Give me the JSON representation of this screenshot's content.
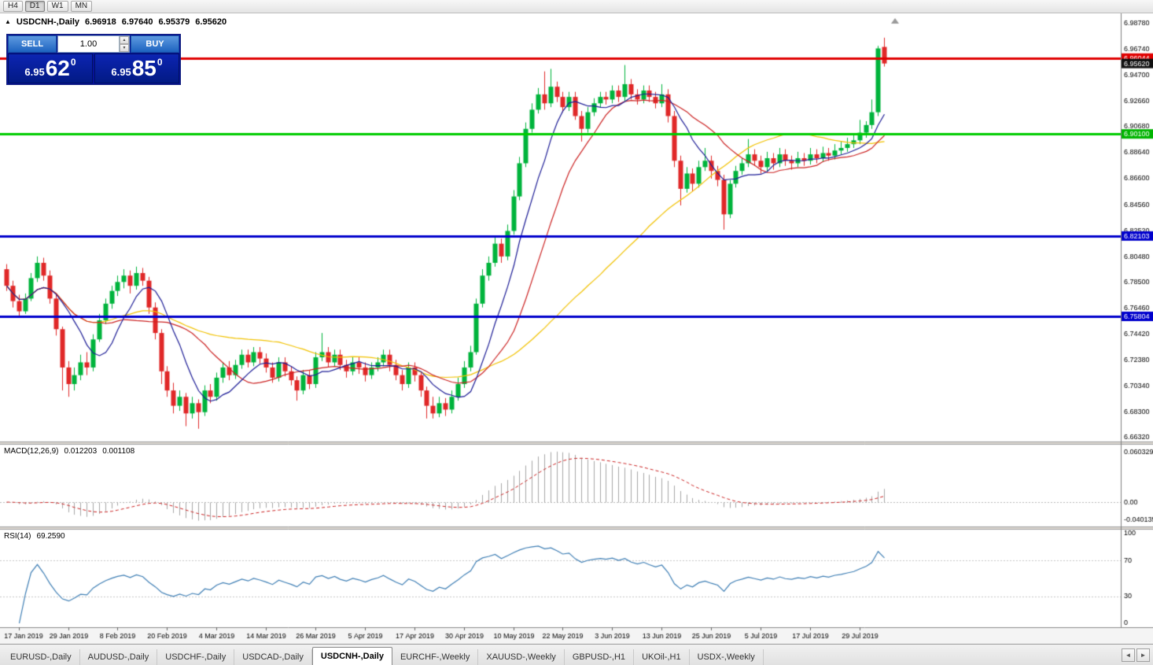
{
  "toolbar": {
    "timeframes": [
      "H4",
      "D1",
      "W1",
      "MN"
    ],
    "active_timeframe": "D1"
  },
  "chart_header": {
    "collapse_icon": "▲",
    "symbol_title": "USDCNH-,Daily",
    "open": "6.96918",
    "high": "6.97640",
    "low": "6.95379",
    "close": "6.95620"
  },
  "trade_panel": {
    "sell_label": "SELL",
    "buy_label": "BUY",
    "volume": "1.00",
    "spinner_up": "▲",
    "spinner_down": "▼",
    "sell_price": {
      "small": "6.95",
      "big": "62",
      "sup": "0"
    },
    "buy_price": {
      "small": "6.95",
      "big": "85",
      "sup": "0"
    }
  },
  "indicators": {
    "macd": {
      "name": "MACD(12,26,9)",
      "value_main": "0.012203",
      "value_signal": "0.001108",
      "fast": 12,
      "slow": 26,
      "signal": 9,
      "axis_labels": [
        "0.060329",
        "0.00",
        "-0.040135"
      ],
      "bar_color": "#a6a6a6",
      "signal_color": "#cc2222"
    },
    "rsi": {
      "name": "RSI(14)",
      "value": "69.2590",
      "period": 14,
      "axis_labels": [
        "100",
        "70",
        "30",
        "0"
      ],
      "axis_values": [
        100,
        70,
        30,
        0
      ],
      "levels": [
        70,
        30
      ],
      "line_color": "#3f7fb5"
    }
  },
  "price_axis": {
    "labels": [
      "6.98780",
      "6.96740",
      "6.94700",
      "6.92660",
      "6.90680",
      "6.88640",
      "6.86600",
      "6.84560",
      "6.82520",
      "6.80480",
      "6.78500",
      "6.76460",
      "6.74420",
      "6.72380",
      "6.70340",
      "6.68300",
      "6.66320"
    ],
    "tags": [
      {
        "text": "6.96044",
        "price": 6.96044,
        "color": "#e00000"
      },
      {
        "text": "6.95620",
        "price": 6.9562,
        "color": "#101010"
      },
      {
        "text": "6.90100",
        "price": 6.901,
        "color": "#00b400"
      },
      {
        "text": "6.82103",
        "price": 6.82103,
        "color": "#0000cc"
      },
      {
        "text": "6.75804",
        "price": 6.75804,
        "color": "#0000cc"
      }
    ]
  },
  "hlines": [
    {
      "price": 6.96044,
      "color": "#e00000",
      "width": 3
    },
    {
      "price": 6.901,
      "color": "#00cc00",
      "width": 3
    },
    {
      "price": 6.82103,
      "color": "#0000cc",
      "width": 3
    },
    {
      "price": 6.75804,
      "color": "#0000cc",
      "width": 3
    }
  ],
  "chart_data": {
    "type": "candlestick",
    "symbol": "USDCNH",
    "timeframe": "Daily",
    "up_color": "#00b43c",
    "down_color": "#e02828",
    "ylim": [
      6.66,
      6.993
    ],
    "moving_averages": [
      {
        "period": 45,
        "color": "#f2c200"
      },
      {
        "period": 16,
        "color": "#cc2222"
      },
      {
        "period": 8,
        "color": "#1c1c96"
      }
    ],
    "x_label_indices": [
      2,
      10,
      18,
      26,
      34,
      42,
      50,
      58,
      66,
      74,
      82,
      90,
      98,
      106,
      114,
      122,
      130,
      138
    ],
    "x_labels": [
      "17 Jan 2019",
      "29 Jan 2019",
      "8 Feb 2019",
      "20 Feb 2019",
      "4 Mar 2019",
      "14 Mar 2019",
      "26 Mar 2019",
      "5 Apr 2019",
      "17 Apr 2019",
      "30 Apr 2019",
      "10 May 2019",
      "22 May 2019",
      "3 Jun 2019",
      "13 Jun 2019",
      "25 Jun 2019",
      "5 Jul 2019",
      "17 Jul 2019",
      "29 Jul 2019"
    ],
    "ohlc": [
      [
        6.795,
        6.799,
        6.778,
        6.782
      ],
      [
        6.782,
        6.786,
        6.765,
        6.77
      ],
      [
        6.77,
        6.775,
        6.758,
        6.762
      ],
      [
        6.762,
        6.776,
        6.76,
        6.772
      ],
      [
        6.772,
        6.792,
        6.77,
        6.788
      ],
      [
        6.788,
        6.805,
        6.785,
        6.8
      ],
      [
        6.8,
        6.804,
        6.786,
        6.79
      ],
      [
        6.79,
        6.794,
        6.768,
        6.772
      ],
      [
        6.772,
        6.776,
        6.743,
        6.748
      ],
      [
        6.748,
        6.75,
        6.7,
        6.718
      ],
      [
        6.718,
        6.723,
        6.695,
        6.705
      ],
      [
        6.705,
        6.718,
        6.7,
        6.712
      ],
      [
        6.712,
        6.728,
        6.708,
        6.722
      ],
      [
        6.722,
        6.73,
        6.712,
        6.718
      ],
      [
        6.718,
        6.744,
        6.715,
        6.74
      ],
      [
        6.74,
        6.76,
        6.738,
        6.755
      ],
      [
        6.755,
        6.772,
        6.752,
        6.768
      ],
      [
        6.768,
        6.782,
        6.764,
        6.778
      ],
      [
        6.778,
        6.79,
        6.774,
        6.785
      ],
      [
        6.785,
        6.795,
        6.78,
        6.79
      ],
      [
        6.79,
        6.794,
        6.776,
        6.782
      ],
      [
        6.782,
        6.797,
        6.779,
        6.792
      ],
      [
        6.792,
        6.796,
        6.782,
        6.786
      ],
      [
        6.786,
        6.789,
        6.76,
        6.765
      ],
      [
        6.765,
        6.769,
        6.74,
        6.745
      ],
      [
        6.745,
        6.748,
        6.705,
        6.715
      ],
      [
        6.715,
        6.719,
        6.695,
        6.7
      ],
      [
        6.7,
        6.706,
        6.682,
        6.688
      ],
      [
        6.688,
        6.7,
        6.684,
        6.695
      ],
      [
        6.695,
        6.698,
        6.672,
        6.682
      ],
      [
        6.682,
        6.695,
        6.678,
        6.69
      ],
      [
        6.69,
        6.693,
        6.67,
        6.683
      ],
      [
        6.683,
        6.704,
        6.68,
        6.7
      ],
      [
        6.7,
        6.705,
        6.69,
        6.695
      ],
      [
        6.695,
        6.714,
        6.692,
        6.71
      ],
      [
        6.71,
        6.722,
        6.706,
        6.718
      ],
      [
        6.718,
        6.723,
        6.708,
        6.712
      ],
      [
        6.712,
        6.724,
        6.709,
        6.72
      ],
      [
        6.72,
        6.732,
        6.717,
        6.728
      ],
      [
        6.728,
        6.732,
        6.718,
        6.722
      ],
      [
        6.722,
        6.734,
        6.719,
        6.73
      ],
      [
        6.73,
        6.734,
        6.721,
        6.725
      ],
      [
        6.725,
        6.729,
        6.714,
        6.718
      ],
      [
        6.718,
        6.722,
        6.706,
        6.71
      ],
      [
        6.71,
        6.726,
        6.707,
        6.722
      ],
      [
        6.722,
        6.726,
        6.711,
        6.715
      ],
      [
        6.715,
        6.719,
        6.704,
        6.708
      ],
      [
        6.708,
        6.711,
        6.692,
        6.7
      ],
      [
        6.7,
        6.716,
        6.697,
        6.712
      ],
      [
        6.712,
        6.716,
        6.701,
        6.705
      ],
      [
        6.705,
        6.73,
        6.702,
        6.726
      ],
      [
        6.726,
        6.745,
        6.723,
        6.73
      ],
      [
        6.73,
        6.734,
        6.718,
        6.722
      ],
      [
        6.722,
        6.732,
        6.719,
        6.728
      ],
      [
        6.728,
        6.732,
        6.716,
        6.72
      ],
      [
        6.72,
        6.724,
        6.71,
        6.715
      ],
      [
        6.715,
        6.726,
        6.712,
        6.722
      ],
      [
        6.722,
        6.726,
        6.713,
        6.718
      ],
      [
        6.718,
        6.722,
        6.707,
        6.712
      ],
      [
        6.712,
        6.722,
        6.709,
        6.718
      ],
      [
        6.718,
        6.726,
        6.715,
        6.722
      ],
      [
        6.722,
        6.732,
        6.719,
        6.728
      ],
      [
        6.728,
        6.732,
        6.715,
        6.72
      ],
      [
        6.72,
        6.724,
        6.708,
        6.712
      ],
      [
        6.712,
        6.716,
        6.7,
        6.705
      ],
      [
        6.705,
        6.722,
        6.702,
        6.718
      ],
      [
        6.718,
        6.722,
        6.707,
        6.712
      ],
      [
        6.712,
        6.715,
        6.695,
        6.7
      ],
      [
        6.7,
        6.703,
        6.678,
        6.688
      ],
      [
        6.688,
        6.695,
        6.678,
        6.682
      ],
      [
        6.682,
        6.695,
        6.679,
        6.69
      ],
      [
        6.69,
        6.694,
        6.68,
        6.685
      ],
      [
        6.685,
        6.7,
        6.682,
        6.695
      ],
      [
        6.695,
        6.71,
        6.692,
        6.705
      ],
      [
        6.705,
        6.723,
        6.702,
        6.718
      ],
      [
        6.718,
        6.735,
        6.715,
        6.73
      ],
      [
        6.73,
        6.772,
        6.728,
        6.768
      ],
      [
        6.768,
        6.795,
        6.765,
        6.79
      ],
      [
        6.79,
        6.805,
        6.786,
        6.8
      ],
      [
        6.8,
        6.82,
        6.797,
        6.815
      ],
      [
        6.815,
        6.819,
        6.8,
        6.805
      ],
      [
        6.805,
        6.83,
        6.802,
        6.825
      ],
      [
        6.825,
        6.857,
        6.822,
        6.852
      ],
      [
        6.852,
        6.883,
        6.849,
        6.878
      ],
      [
        6.878,
        6.91,
        6.875,
        6.905
      ],
      [
        6.905,
        6.925,
        6.902,
        6.92
      ],
      [
        6.92,
        6.937,
        6.917,
        6.932
      ],
      [
        6.932,
        6.95,
        6.92,
        6.925
      ],
      [
        6.925,
        6.952,
        6.922,
        6.938
      ],
      [
        6.938,
        6.942,
        6.926,
        6.93
      ],
      [
        6.93,
        6.934,
        6.918,
        6.922
      ],
      [
        6.922,
        6.934,
        6.919,
        6.93
      ],
      [
        6.93,
        6.934,
        6.912,
        6.915
      ],
      [
        6.915,
        6.919,
        6.895,
        6.905
      ],
      [
        6.905,
        6.922,
        6.902,
        6.918
      ],
      [
        6.918,
        6.929,
        6.915,
        6.925
      ],
      [
        6.925,
        6.934,
        6.922,
        6.93
      ],
      [
        6.93,
        6.934,
        6.924,
        6.928
      ],
      [
        6.928,
        6.939,
        6.925,
        6.935
      ],
      [
        6.935,
        6.939,
        6.926,
        6.93
      ],
      [
        6.93,
        6.955,
        6.927,
        6.94
      ],
      [
        6.94,
        6.944,
        6.928,
        6.932
      ],
      [
        6.932,
        6.936,
        6.924,
        6.928
      ],
      [
        6.928,
        6.939,
        6.925,
        6.935
      ],
      [
        6.935,
        6.939,
        6.926,
        6.93
      ],
      [
        6.93,
        6.934,
        6.921,
        6.925
      ],
      [
        6.925,
        6.94,
        6.922,
        6.932
      ],
      [
        6.932,
        6.936,
        6.91,
        6.915
      ],
      [
        6.915,
        6.919,
        6.875,
        6.88
      ],
      [
        6.88,
        6.884,
        6.845,
        6.858
      ],
      [
        6.858,
        6.875,
        6.855,
        6.87
      ],
      [
        6.87,
        6.874,
        6.856,
        6.862
      ],
      [
        6.862,
        6.88,
        6.859,
        6.875
      ],
      [
        6.875,
        6.89,
        6.872,
        6.88
      ],
      [
        6.88,
        6.884,
        6.866,
        6.872
      ],
      [
        6.872,
        6.876,
        6.86,
        6.865
      ],
      [
        6.865,
        6.869,
        6.826,
        6.838
      ],
      [
        6.838,
        6.865,
        6.835,
        6.862
      ],
      [
        6.862,
        6.876,
        6.859,
        6.872
      ],
      [
        6.872,
        6.882,
        6.869,
        6.878
      ],
      [
        6.878,
        6.897,
        6.875,
        6.885
      ],
      [
        6.885,
        6.889,
        6.876,
        6.88
      ],
      [
        6.88,
        6.884,
        6.87,
        6.875
      ],
      [
        6.875,
        6.887,
        6.872,
        6.882
      ],
      [
        6.882,
        6.886,
        6.873,
        6.878
      ],
      [
        6.878,
        6.89,
        6.875,
        6.885
      ],
      [
        6.885,
        6.889,
        6.876,
        6.88
      ],
      [
        6.88,
        6.884,
        6.873,
        6.878
      ],
      [
        6.878,
        6.887,
        6.875,
        6.882
      ],
      [
        6.882,
        6.886,
        6.876,
        6.88
      ],
      [
        6.88,
        6.89,
        6.877,
        6.885
      ],
      [
        6.885,
        6.889,
        6.878,
        6.882
      ],
      [
        6.882,
        6.891,
        6.879,
        6.886
      ],
      [
        6.886,
        6.89,
        6.88,
        6.884
      ],
      [
        6.884,
        6.893,
        6.881,
        6.888
      ],
      [
        6.888,
        6.895,
        6.885,
        6.89
      ],
      [
        6.89,
        6.898,
        6.887,
        6.893
      ],
      [
        6.893,
        6.901,
        6.89,
        6.896
      ],
      [
        6.896,
        6.912,
        6.893,
        6.902
      ],
      [
        6.902,
        6.911,
        6.898,
        6.908
      ],
      [
        6.908,
        6.928,
        6.905,
        6.918
      ],
      [
        6.918,
        6.97,
        6.915,
        6.968
      ],
      [
        6.9692,
        6.9764,
        6.9538,
        6.9562
      ]
    ]
  },
  "tabs": {
    "items": [
      "EURUSD-,Daily",
      "AUDUSD-,Daily",
      "USDCHF-,Daily",
      "USDCAD-,Daily",
      "USDCNH-,Daily",
      "EURCHF-,Weekly",
      "XAUUSD-,Weekly",
      "GBPUSD-,H1",
      "UKOil-,H1",
      "USDX-,Weekly"
    ],
    "active_index": 4,
    "scroll_left": "◄",
    "scroll_right": "►"
  }
}
